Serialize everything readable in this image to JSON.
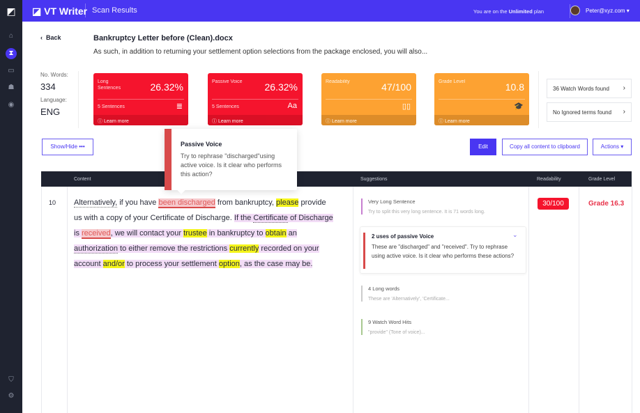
{
  "app": {
    "title": "VT Writer",
    "section": "Scan Results",
    "plan_prefix": "You are on the ",
    "plan_name": "Unlimited",
    "plan_suffix": " plan",
    "user": "Peter@xyz.com"
  },
  "sidebar": {
    "items": [
      "home",
      "scan",
      "billing",
      "users",
      "watch"
    ],
    "bottom": [
      "shield",
      "settings"
    ]
  },
  "doc": {
    "back": "Back",
    "filename": "Bankruptcy Letter before (Clean).docx",
    "excerpt": "As such, in addition to returning your settlement option selections from the package enclosed, you will also..."
  },
  "stats": {
    "words_label": "No. Words:",
    "words": "334",
    "lang_label": "Language:",
    "lang": "ENG"
  },
  "cards": [
    {
      "label": "Long Sentences",
      "value": "26.32%",
      "sub": "5 Sentences",
      "icon": "≣",
      "learn": "Learn more"
    },
    {
      "label": "Passive Voice",
      "value": "26.32%",
      "sub": "5 Sentences",
      "icon": "Aa",
      "learn": "Learn more"
    },
    {
      "label": "Readability",
      "value": "47/100",
      "sub": "",
      "icon": "▯▯",
      "learn": "Learn more"
    },
    {
      "label": "Grade Level",
      "value": "10.8",
      "sub": "",
      "icon": "🎓",
      "learn": "Learn more"
    }
  ],
  "side_boxes": [
    "36 Watch Words found",
    "No Ignored terms found"
  ],
  "buttons": {
    "showhide": "Show/Hide",
    "edit": "Edit",
    "copy": "Copy all content to clipboard",
    "actions": "Actions"
  },
  "tooltip": {
    "title": "Passive Voice",
    "body": "Try to rephrase \"discharged\"using active voice. Is it clear who performs this action?"
  },
  "table": {
    "headers": [
      "Content",
      "Suggestions",
      "Readability",
      "Grade Level"
    ],
    "row": {
      "number": "10",
      "readability": "30/100",
      "grade": "Grade 16.3",
      "segments": [
        {
          "t": "Alternatively,",
          "c": "dt"
        },
        {
          "t": " if you have ",
          "c": ""
        },
        {
          "t": "been discharged",
          "c": "pv"
        },
        {
          "t": " from bankruptcy, ",
          "c": ""
        },
        {
          "t": "please",
          "c": "yl"
        },
        {
          "t": " provide us with a copy of your Certificate of Discharge.  ",
          "c": ""
        },
        {
          "t": "If the ",
          "c": "pu"
        },
        {
          "t": "Certificate",
          "c": "pu dt"
        },
        {
          "t": " of Discharge is ",
          "c": "pu"
        },
        {
          "t": "received",
          "c": "pv"
        },
        {
          "t": ", we will contact your ",
          "c": "pu"
        },
        {
          "t": "trustee",
          "c": "yl"
        },
        {
          "t": " in bankruptcy to ",
          "c": "pu"
        },
        {
          "t": "obtain",
          "c": "yl"
        },
        {
          "t": " an ",
          "c": "pu"
        },
        {
          "t": "authorization",
          "c": "pu dt"
        },
        {
          "t": " to either remove the restrictions ",
          "c": "pu"
        },
        {
          "t": "currently",
          "c": "yl"
        },
        {
          "t": " recorded on your account ",
          "c": "pu"
        },
        {
          "t": "and/or",
          "c": "yl"
        },
        {
          "t": " to process your settlement ",
          "c": "pu"
        },
        {
          "t": "option",
          "c": "yl"
        },
        {
          "t": ", as the case may be.",
          "c": "pu"
        }
      ]
    },
    "suggestions": [
      {
        "title": "Very Long Sentence",
        "desc": "Try to split this very long sentence. It is 71 words long.",
        "color": "#c77fd0"
      },
      {
        "title": "2 uses of passive Voice",
        "desc": "These are \"discharged\" and \"received\". Try to rephrase using active voice. Is it clear who performs these actions?",
        "color": "#d84a4a"
      },
      {
        "title": "4 Long words",
        "desc": "These are 'Alternatively', 'Certificate...",
        "color": "#cccccc"
      },
      {
        "title": "9 Watch Word Hits",
        "desc": "\"provide\" (Tone of voice)...",
        "color": "#a8c890"
      }
    ]
  }
}
